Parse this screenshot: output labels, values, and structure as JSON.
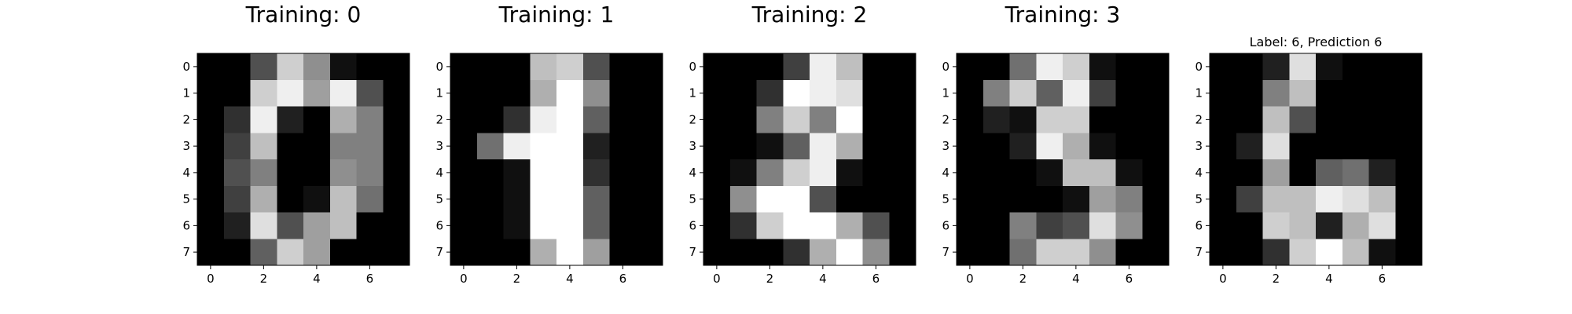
{
  "chart_data": [
    {
      "type": "heatmap",
      "title": "Training: 0",
      "colormap": "gray",
      "vmin": 0,
      "vmax": 16,
      "x_ticks": [
        "0",
        "2",
        "4",
        "6"
      ],
      "y_ticks": [
        "0",
        "1",
        "2",
        "3",
        "4",
        "5",
        "6",
        "7"
      ],
      "values": [
        [
          0,
          0,
          5,
          13,
          9,
          1,
          0,
          0
        ],
        [
          0,
          0,
          13,
          15,
          10,
          15,
          5,
          0
        ],
        [
          0,
          3,
          15,
          2,
          0,
          11,
          8,
          0
        ],
        [
          0,
          4,
          12,
          0,
          0,
          8,
          8,
          0
        ],
        [
          0,
          5,
          8,
          0,
          0,
          9,
          8,
          0
        ],
        [
          0,
          4,
          11,
          0,
          1,
          12,
          7,
          0
        ],
        [
          0,
          2,
          14,
          5,
          10,
          12,
          0,
          0
        ],
        [
          0,
          0,
          6,
          13,
          10,
          0,
          0,
          0
        ]
      ]
    },
    {
      "type": "heatmap",
      "title": "Training: 1",
      "colormap": "gray",
      "vmin": 0,
      "vmax": 16,
      "x_ticks": [
        "0",
        "2",
        "4",
        "6"
      ],
      "y_ticks": [
        "0",
        "1",
        "2",
        "3",
        "4",
        "5",
        "6",
        "7"
      ],
      "values": [
        [
          0,
          0,
          0,
          12,
          13,
          5,
          0,
          0
        ],
        [
          0,
          0,
          0,
          11,
          16,
          9,
          0,
          0
        ],
        [
          0,
          0,
          3,
          15,
          16,
          6,
          0,
          0
        ],
        [
          0,
          7,
          15,
          16,
          16,
          2,
          0,
          0
        ],
        [
          0,
          0,
          1,
          16,
          16,
          3,
          0,
          0
        ],
        [
          0,
          0,
          1,
          16,
          16,
          6,
          0,
          0
        ],
        [
          0,
          0,
          1,
          16,
          16,
          6,
          0,
          0
        ],
        [
          0,
          0,
          0,
          11,
          16,
          10,
          0,
          0
        ]
      ]
    },
    {
      "type": "heatmap",
      "title": "Training: 2",
      "colormap": "gray",
      "vmin": 0,
      "vmax": 16,
      "x_ticks": [
        "0",
        "2",
        "4",
        "6"
      ],
      "y_ticks": [
        "0",
        "1",
        "2",
        "3",
        "4",
        "5",
        "6",
        "7"
      ],
      "values": [
        [
          0,
          0,
          0,
          4,
          15,
          12,
          0,
          0
        ],
        [
          0,
          0,
          3,
          16,
          15,
          14,
          0,
          0
        ],
        [
          0,
          0,
          8,
          13,
          8,
          16,
          0,
          0
        ],
        [
          0,
          0,
          1,
          6,
          15,
          11,
          0,
          0
        ],
        [
          0,
          1,
          8,
          13,
          15,
          1,
          0,
          0
        ],
        [
          0,
          9,
          16,
          16,
          5,
          0,
          0,
          0
        ],
        [
          0,
          3,
          13,
          16,
          16,
          11,
          5,
          0
        ],
        [
          0,
          0,
          0,
          3,
          11,
          16,
          9,
          0
        ]
      ]
    },
    {
      "type": "heatmap",
      "title": "Training: 3",
      "colormap": "gray",
      "vmin": 0,
      "vmax": 16,
      "x_ticks": [
        "0",
        "2",
        "4",
        "6"
      ],
      "y_ticks": [
        "0",
        "1",
        "2",
        "3",
        "4",
        "5",
        "6",
        "7"
      ],
      "values": [
        [
          0,
          0,
          7,
          15,
          13,
          1,
          0,
          0
        ],
        [
          0,
          8,
          13,
          6,
          15,
          4,
          0,
          0
        ],
        [
          0,
          2,
          1,
          13,
          13,
          0,
          0,
          0
        ],
        [
          0,
          0,
          2,
          15,
          11,
          1,
          0,
          0
        ],
        [
          0,
          0,
          0,
          1,
          12,
          12,
          1,
          0
        ],
        [
          0,
          0,
          0,
          0,
          1,
          10,
          8,
          0
        ],
        [
          0,
          0,
          8,
          4,
          5,
          14,
          9,
          0
        ],
        [
          0,
          0,
          7,
          13,
          13,
          9,
          0,
          0
        ]
      ]
    },
    {
      "type": "heatmap",
      "title": "Label: 6, Prediction 6",
      "colormap": "gray",
      "vmin": 0,
      "vmax": 16,
      "x_ticks": [
        "0",
        "2",
        "4",
        "6"
      ],
      "y_ticks": [
        "0",
        "1",
        "2",
        "3",
        "4",
        "5",
        "6",
        "7"
      ],
      "values": [
        [
          0,
          0,
          2,
          14,
          1,
          0,
          0,
          0
        ],
        [
          0,
          0,
          8,
          12,
          0,
          0,
          0,
          0
        ],
        [
          0,
          0,
          12,
          5,
          0,
          0,
          0,
          0
        ],
        [
          0,
          2,
          14,
          0,
          0,
          0,
          0,
          0
        ],
        [
          0,
          0,
          10,
          0,
          6,
          7,
          2,
          0
        ],
        [
          0,
          4,
          12,
          12,
          15,
          14,
          12,
          0
        ],
        [
          0,
          0,
          13,
          12,
          2,
          11,
          14,
          0
        ],
        [
          0,
          0,
          3,
          13,
          16,
          12,
          1,
          0
        ]
      ]
    }
  ]
}
